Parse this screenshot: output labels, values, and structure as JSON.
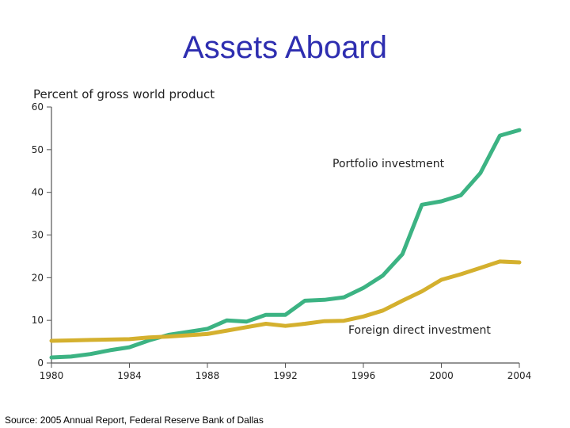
{
  "slide": {
    "title": "Assets Aboard",
    "source": "Source: 2005 Annual Report, Federal Reserve Bank of Dallas"
  },
  "chart_data": {
    "type": "line",
    "title": "Assets Aboard",
    "ylabel": "Percent of gross world product",
    "xlabel": "",
    "xlim": [
      1980,
      2004
    ],
    "ylim": [
      0,
      60
    ],
    "x_ticks": [
      1980,
      1984,
      1988,
      1992,
      1996,
      2000,
      2004
    ],
    "y_ticks": [
      0,
      10,
      20,
      30,
      40,
      50,
      60
    ],
    "grid": false,
    "legend": "inline labels",
    "series": [
      {
        "name": "Portfolio investment",
        "color": "#3cb383",
        "x": [
          1980,
          1981,
          1982,
          1983,
          1984,
          1985,
          1986,
          1987,
          1988,
          1989,
          1990,
          1991,
          1992,
          1993,
          1994,
          1995,
          1996,
          1997,
          1998,
          1999,
          2000,
          2001,
          2002,
          2003,
          2004
        ],
        "y": [
          1.3,
          1.5,
          2.1,
          3.0,
          3.7,
          5.3,
          6.6,
          7.3,
          8.0,
          10.0,
          9.7,
          11.3,
          11.3,
          14.6,
          14.8,
          15.4,
          17.6,
          20.5,
          25.5,
          37.1,
          37.9,
          39.3,
          44.5,
          53.3,
          54.6
        ]
      },
      {
        "name": "Foreign direct investment",
        "color": "#d4b02e",
        "x": [
          1980,
          1981,
          1982,
          1983,
          1984,
          1985,
          1986,
          1987,
          1988,
          1989,
          1990,
          1991,
          1992,
          1993,
          1994,
          1995,
          1996,
          1997,
          1998,
          1999,
          2000,
          2001,
          2002,
          2003,
          2004
        ],
        "y": [
          5.2,
          5.3,
          5.4,
          5.5,
          5.6,
          6.0,
          6.2,
          6.5,
          6.8,
          7.6,
          8.4,
          9.2,
          8.7,
          9.2,
          9.8,
          9.9,
          10.9,
          12.3,
          14.6,
          16.8,
          19.5,
          20.8,
          22.3,
          23.8,
          23.6
        ]
      }
    ]
  }
}
